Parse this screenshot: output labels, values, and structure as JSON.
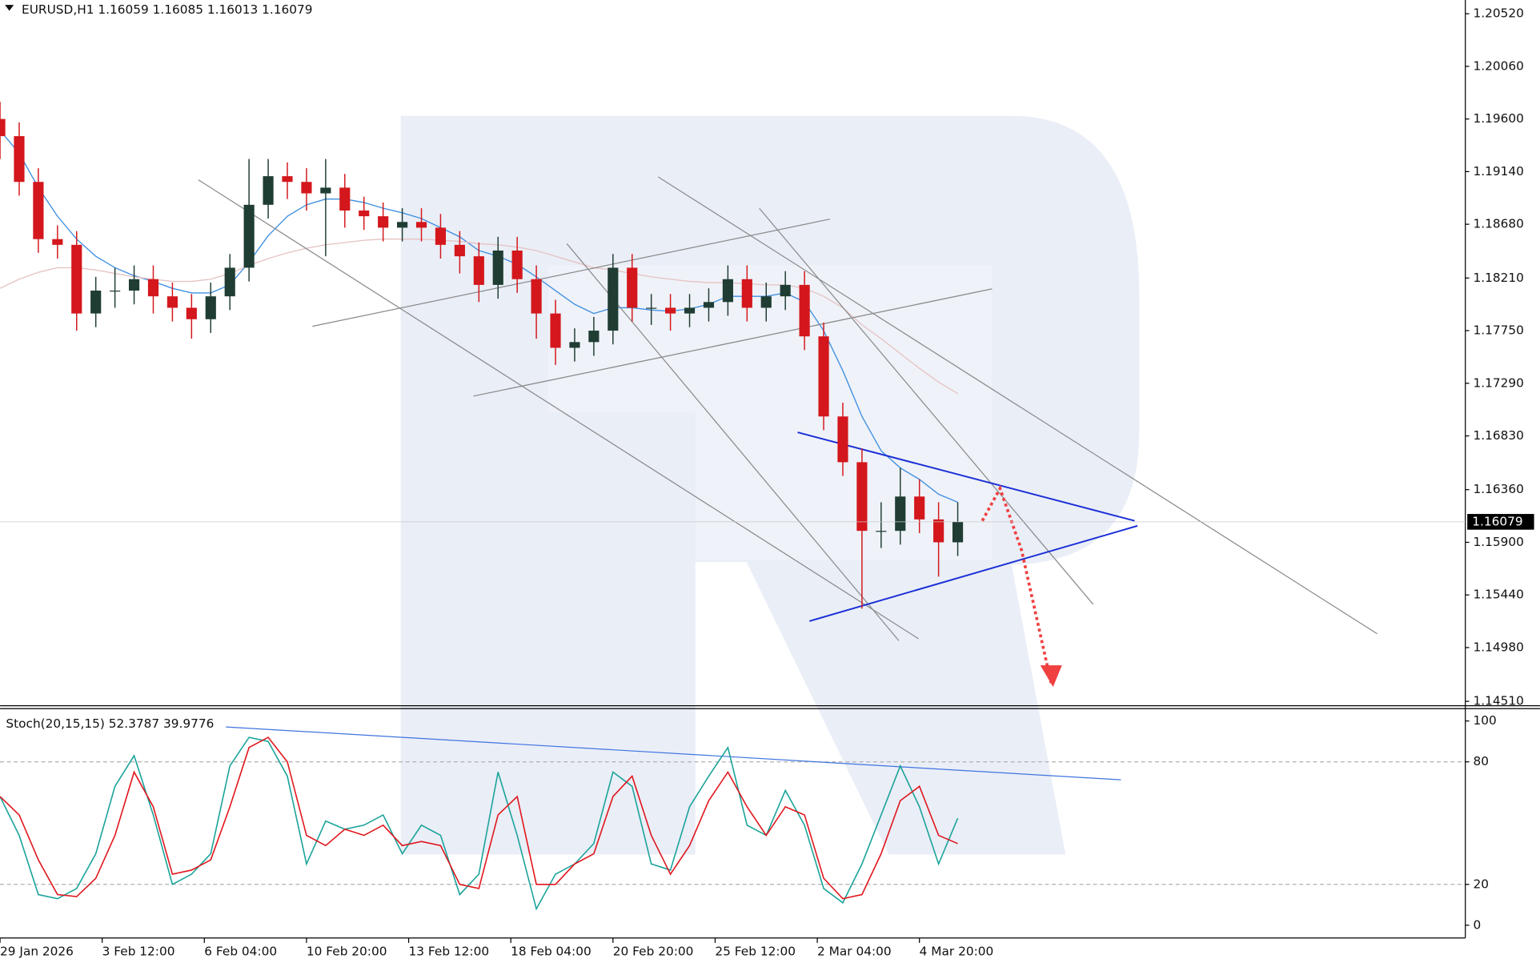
{
  "chart_data": [
    {
      "type": "candlestick",
      "title": "EURUSD,H1  1.16059 1.16085 1.16013 1.16079",
      "xlim": [
        0,
        918
      ],
      "xticks": [
        {
          "value": 0,
          "label": "29 Jan 2026"
        },
        {
          "value": 64,
          "label": "3 Feb 12:00"
        },
        {
          "value": 128,
          "label": "6 Feb 04:00"
        },
        {
          "value": 192,
          "label": "10 Feb 20:00"
        },
        {
          "value": 256,
          "label": "13 Feb 12:00"
        },
        {
          "value": 320,
          "label": "18 Feb 04:00"
        },
        {
          "value": 384,
          "label": "20 Feb 20:00"
        },
        {
          "value": 448,
          "label": "25 Feb 12:00"
        },
        {
          "value": 512,
          "label": "2 Mar 04:00"
        },
        {
          "value": 576,
          "label": "4 Mar 20:00"
        }
      ],
      "ylim": [
        1.14476,
        1.2064
      ],
      "yticks": [
        {
          "value": 1.2052,
          "label": "1.20520"
        },
        {
          "value": 1.2006,
          "label": "1.20060"
        },
        {
          "value": 1.196,
          "label": "1.19600"
        },
        {
          "value": 1.1914,
          "label": "1.19140"
        },
        {
          "value": 1.1868,
          "label": "1.18680"
        },
        {
          "value": 1.1821,
          "label": "1.18210"
        },
        {
          "value": 1.1775,
          "label": "1.17750"
        },
        {
          "value": 1.1729,
          "label": "1.17290"
        },
        {
          "value": 1.1683,
          "label": "1.16830"
        },
        {
          "value": 1.1636,
          "label": "1.16360"
        },
        {
          "value": 1.159,
          "label": "1.15900"
        },
        {
          "value": 1.1544,
          "label": "1.15440"
        },
        {
          "value": 1.1498,
          "label": "1.14980"
        },
        {
          "value": 1.1451,
          "label": "1.14510"
        }
      ],
      "x": [
        0,
        12,
        24,
        36,
        48,
        60,
        72,
        84,
        96,
        108,
        120,
        132,
        144,
        156,
        168,
        180,
        192,
        204,
        216,
        228,
        240,
        252,
        264,
        276,
        288,
        300,
        312,
        324,
        336,
        348,
        360,
        372,
        384,
        396,
        408,
        420,
        432,
        444,
        456,
        468,
        480,
        492,
        504,
        516,
        528,
        540,
        552,
        564,
        576,
        588,
        600
      ],
      "open": [
        1.196,
        1.1945,
        1.1905,
        1.1855,
        1.185,
        1.179,
        1.181,
        1.181,
        1.182,
        1.1805,
        1.1795,
        1.1785,
        1.1805,
        1.183,
        1.1885,
        1.191,
        1.1905,
        1.1895,
        1.19,
        1.188,
        1.1875,
        1.1865,
        1.187,
        1.1865,
        1.185,
        1.184,
        1.1815,
        1.1845,
        1.182,
        1.179,
        1.176,
        1.1765,
        1.1775,
        1.183,
        1.1795,
        1.1795,
        1.179,
        1.1795,
        1.18,
        1.182,
        1.1795,
        1.1805,
        1.1815,
        1.177,
        1.17,
        1.166,
        1.16,
        1.16,
        1.163,
        1.161,
        1.159
      ],
      "high": [
        1.1975,
        1.1957,
        1.1917,
        1.1867,
        1.1862,
        1.1822,
        1.183,
        1.1832,
        1.1832,
        1.1817,
        1.1807,
        1.1817,
        1.1842,
        1.1925,
        1.1925,
        1.1922,
        1.1917,
        1.1925,
        1.1912,
        1.1892,
        1.1887,
        1.1882,
        1.1882,
        1.1877,
        1.1862,
        1.1852,
        1.1857,
        1.1857,
        1.1832,
        1.1802,
        1.1777,
        1.1787,
        1.1842,
        1.1842,
        1.1807,
        1.1807,
        1.1807,
        1.1812,
        1.1832,
        1.1832,
        1.1817,
        1.1827,
        1.1827,
        1.1782,
        1.1712,
        1.1672,
        1.1625,
        1.1655,
        1.1645,
        1.1625,
        1.1625
      ],
      "low": [
        1.1925,
        1.1893,
        1.1843,
        1.1838,
        1.1775,
        1.1778,
        1.1795,
        1.1798,
        1.179,
        1.1783,
        1.1768,
        1.1773,
        1.1793,
        1.1818,
        1.1873,
        1.189,
        1.188,
        1.184,
        1.1865,
        1.1863,
        1.1853,
        1.1853,
        1.1853,
        1.1838,
        1.1825,
        1.18,
        1.1803,
        1.1808,
        1.1768,
        1.1745,
        1.1748,
        1.1753,
        1.1763,
        1.1783,
        1.178,
        1.1775,
        1.1778,
        1.1783,
        1.1788,
        1.1783,
        1.1783,
        1.1793,
        1.1758,
        1.1688,
        1.1648,
        1.1532,
        1.1585,
        1.1588,
        1.1598,
        1.156,
        1.1578
      ],
      "close": [
        1.1945,
        1.1905,
        1.1855,
        1.185,
        1.179,
        1.181,
        1.181,
        1.182,
        1.1805,
        1.1795,
        1.1785,
        1.1805,
        1.183,
        1.1885,
        1.191,
        1.1905,
        1.1895,
        1.19,
        1.188,
        1.1875,
        1.1865,
        1.187,
        1.1865,
        1.185,
        1.184,
        1.1815,
        1.1845,
        1.182,
        1.179,
        1.176,
        1.1765,
        1.1775,
        1.183,
        1.1795,
        1.1795,
        1.179,
        1.1795,
        1.18,
        1.182,
        1.1795,
        1.1805,
        1.1815,
        1.177,
        1.17,
        1.166,
        1.16,
        1.16,
        1.163,
        1.161,
        1.159,
        1.16079
      ],
      "up_color": "#1f3d33",
      "down_color": "#d3171c",
      "lines": [
        {
          "color": "#3f8fe0",
          "values": [
            1.195,
            1.193,
            1.19,
            1.1875,
            1.1855,
            1.184,
            1.183,
            1.1823,
            1.1818,
            1.1812,
            1.1808,
            1.1808,
            1.1815,
            1.1835,
            1.1858,
            1.1875,
            1.1885,
            1.189,
            1.189,
            1.1887,
            1.1882,
            1.1878,
            1.1873,
            1.1865,
            1.1857,
            1.1845,
            1.184,
            1.1833,
            1.1822,
            1.181,
            1.1798,
            1.179,
            1.1795,
            1.1795,
            1.1793,
            1.1792,
            1.1794,
            1.1798,
            1.1805,
            1.1805,
            1.1805,
            1.1808,
            1.18,
            1.1775,
            1.174,
            1.17,
            1.167,
            1.1655,
            1.1645,
            1.1632,
            1.1625
          ]
        },
        {
          "color": "#e6c3c3",
          "values": [
            1.1812,
            1.182,
            1.1826,
            1.183,
            1.183,
            1.1828,
            1.1825,
            1.1822,
            1.182,
            1.1818,
            1.1818,
            1.182,
            1.1825,
            1.1832,
            1.1838,
            1.1843,
            1.1847,
            1.185,
            1.1852,
            1.1854,
            1.1855,
            1.1855,
            1.1855,
            1.1854,
            1.1853,
            1.1851,
            1.185,
            1.1848,
            1.1845,
            1.184,
            1.1835,
            1.183,
            1.1828,
            1.1825,
            1.1822,
            1.182,
            1.1818,
            1.1817,
            1.1817,
            1.1816,
            1.1815,
            1.1815,
            1.1812,
            1.1805,
            1.1795,
            1.178,
            1.1768,
            1.1755,
            1.1742,
            1.173,
            1.172
          ]
        }
      ],
      "trendlines": [
        {
          "color": "#8a8a8a",
          "x": [
            124.3,
            575.4
          ],
          "y": [
            1.19068,
            1.15057
          ]
        },
        {
          "color": "#8a8a8a",
          "x": [
            195.7,
            520
          ],
          "y": [
            1.17788,
            1.18725
          ]
        },
        {
          "color": "#8a8a8a",
          "x": [
            296.6,
            621.5
          ],
          "y": [
            1.17178,
            1.18115
          ]
        },
        {
          "color": "#8a8a8a",
          "x": [
            355.1,
            563.1
          ],
          "y": [
            1.1851,
            1.1504
          ]
        },
        {
          "color": "#8a8a8a",
          "x": [
            412.3,
            862.8
          ],
          "y": [
            1.19094,
            1.151
          ]
        },
        {
          "color": "#8a8a8a",
          "x": [
            475.7,
            684.9
          ],
          "y": [
            1.18819,
            1.15357
          ]
        },
        {
          "color": "#1a2fd6",
          "x": [
            499.7,
            710.8
          ],
          "y": [
            1.16861,
            1.16088
          ]
        },
        {
          "color": "#1a2fd6",
          "x": [
            507.1,
            712.6
          ],
          "y": [
            1.15211,
            1.16044
          ]
        }
      ],
      "forecast": {
        "color": "#f04040",
        "x": [
          615.4,
          626.5,
          640,
          658.5
        ],
        "y": [
          1.16088,
          1.16371,
          1.1583,
          1.1467
        ]
      }
    },
    {
      "type": "line",
      "title": "Stoch(20,15,15) 52.3787 39.9776",
      "ylim": [
        -6.25,
        105.8
      ],
      "yticks": [
        0,
        20,
        80,
        100
      ],
      "level_lines": [
        20,
        80
      ],
      "series": [
        {
          "color": "#1aa39a",
          "values": [
            63,
            44,
            15,
            13,
            18,
            35,
            68,
            83,
            54,
            20,
            25,
            35,
            78,
            92,
            90,
            73,
            30,
            51,
            47,
            49,
            54,
            35,
            49,
            44,
            15,
            25,
            75,
            44,
            8,
            25,
            30,
            40,
            75,
            68,
            30,
            27,
            58,
            73,
            87,
            49,
            44,
            66,
            49,
            18,
            11,
            30,
            54,
            78,
            58,
            30,
            52.3787
          ]
        },
        {
          "color": "#e0161c",
          "values": [
            63,
            54,
            32,
            15,
            14,
            23,
            44,
            75,
            58,
            25,
            27,
            32,
            58,
            87,
            92,
            80,
            44,
            39,
            47,
            44,
            49,
            39,
            41,
            39,
            20,
            18,
            54,
            63,
            20,
            20,
            30,
            35,
            63,
            73,
            44,
            25,
            39,
            61,
            75,
            58,
            44,
            58,
            54,
            23,
            13,
            15,
            35,
            61,
            68,
            44,
            39.9776
          ]
        }
      ],
      "trendlines": [
        {
          "color": "#3f74e0",
          "x": [
            141.5,
            702.2
          ],
          "y": [
            97.1,
            71.2
          ]
        }
      ]
    }
  ]
}
